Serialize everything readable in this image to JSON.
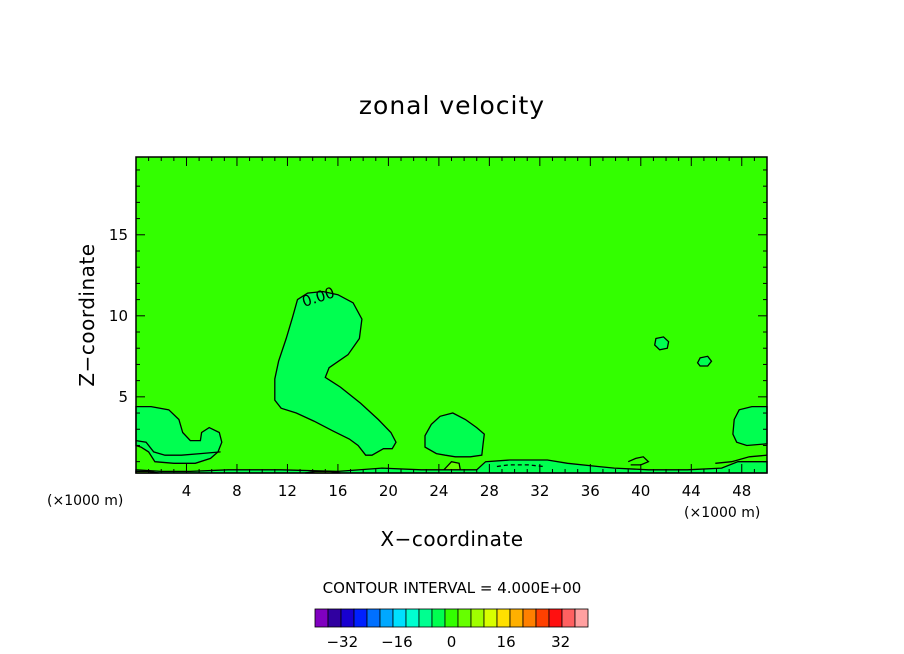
{
  "chart_data": {
    "type": "contour",
    "title": "zonal velocity",
    "xlabel": "X−coordinate",
    "ylabel": "Z−coordinate",
    "x_unit": "(×1000 m)",
    "x_unit_right": "(×1000 m)",
    "xlim": [
      0,
      50
    ],
    "ylim": [
      0.3,
      19.8
    ],
    "x_ticks": [
      4,
      8,
      12,
      16,
      20,
      24,
      28,
      32,
      36,
      40,
      44,
      48
    ],
    "y_ticks": [
      5,
      10,
      15
    ],
    "contour_interval_text": "CONTOUR INTERVAL = 4.000E+00",
    "contour_label": "0.00",
    "background_color": "#33ff00",
    "colorbar": {
      "colors": [
        "#8000c0",
        "#3000a0",
        "#1800d0",
        "#0020ff",
        "#0070ff",
        "#00a8ff",
        "#00e0ff",
        "#00ffd0",
        "#00ff90",
        "#00ff50",
        "#33ff00",
        "#66ff00",
        "#a0ff00",
        "#d8ff00",
        "#ffe000",
        "#ffb000",
        "#ff8000",
        "#ff4000",
        "#ff1010",
        "#ff6060",
        "#ffa0a0"
      ],
      "tick_labels": [
        "−32",
        "−16",
        "0",
        "16",
        "32"
      ],
      "tick_values": [
        -32,
        -16,
        0,
        16,
        32
      ],
      "vmin": -40,
      "vmax": 40
    },
    "regions": [
      {
        "name": "jet-negative",
        "level": -4,
        "color": "#00ff50",
        "points": [
          [
            12.8,
            11.0
          ],
          [
            13.6,
            11.4
          ],
          [
            14.8,
            11.5
          ],
          [
            16.0,
            11.3
          ],
          [
            17.2,
            10.8
          ],
          [
            17.9,
            9.8
          ],
          [
            17.7,
            8.6
          ],
          [
            16.8,
            7.6
          ],
          [
            15.3,
            6.8
          ],
          [
            15.0,
            6.2
          ],
          [
            16.2,
            5.6
          ],
          [
            17.8,
            4.6
          ],
          [
            19.2,
            3.6
          ],
          [
            20.2,
            2.8
          ],
          [
            20.6,
            2.2
          ],
          [
            20.3,
            1.8
          ],
          [
            19.6,
            1.8
          ],
          [
            18.7,
            1.4
          ],
          [
            18.2,
            1.4
          ],
          [
            17.6,
            2.0
          ],
          [
            16.9,
            2.4
          ],
          [
            15.6,
            2.9
          ],
          [
            14.1,
            3.5
          ],
          [
            12.7,
            4.0
          ],
          [
            11.5,
            4.3
          ],
          [
            11.0,
            4.8
          ],
          [
            11.0,
            6.1
          ],
          [
            11.3,
            7.2
          ],
          [
            11.9,
            8.6
          ],
          [
            12.4,
            9.9
          ]
        ]
      },
      {
        "name": "left-low-negative",
        "level": -4,
        "color": "#00ff50",
        "points": [
          [
            0,
            4.4
          ],
          [
            1.2,
            4.4
          ],
          [
            2.6,
            4.2
          ],
          [
            3.4,
            3.6
          ],
          [
            3.7,
            2.8
          ],
          [
            4.3,
            2.3
          ],
          [
            5.1,
            2.3
          ],
          [
            5.2,
            2.8
          ],
          [
            5.8,
            3.1
          ],
          [
            6.6,
            2.8
          ],
          [
            6.8,
            2.2
          ],
          [
            6.5,
            1.6
          ],
          [
            5.9,
            1.2
          ],
          [
            4.7,
            0.9
          ],
          [
            3.0,
            0.9
          ],
          [
            1.5,
            1.0
          ],
          [
            1.0,
            1.6
          ],
          [
            0.4,
            1.9
          ],
          [
            0,
            2.0
          ]
        ]
      },
      {
        "name": "mid-low-negative",
        "level": -4,
        "color": "#00ff50",
        "points": [
          [
            22.9,
            2.6
          ],
          [
            23.4,
            3.3
          ],
          [
            24.1,
            3.8
          ],
          [
            25.1,
            4.0
          ],
          [
            26.1,
            3.6
          ],
          [
            27.0,
            3.1
          ],
          [
            27.6,
            2.7
          ],
          [
            27.5,
            2.1
          ],
          [
            27.4,
            1.4
          ],
          [
            26.5,
            1.3
          ],
          [
            25.3,
            1.3
          ],
          [
            24.5,
            1.4
          ],
          [
            23.8,
            1.5
          ],
          [
            22.9,
            1.9
          ]
        ]
      },
      {
        "name": "right-low-negative",
        "level": -4,
        "color": "#00ff50",
        "points": [
          [
            50,
            4.4
          ],
          [
            48.8,
            4.4
          ],
          [
            47.8,
            4.2
          ],
          [
            47.4,
            3.6
          ],
          [
            47.3,
            2.7
          ],
          [
            47.6,
            2.2
          ],
          [
            48.4,
            2.0
          ],
          [
            50,
            2.1
          ]
        ]
      },
      {
        "name": "right-small-cell-1",
        "level": -4,
        "color": "#00ff50",
        "points": [
          [
            41.2,
            8.6
          ],
          [
            41.8,
            8.7
          ],
          [
            42.2,
            8.4
          ],
          [
            42.1,
            8.0
          ],
          [
            41.5,
            7.9
          ],
          [
            41.1,
            8.2
          ]
        ]
      },
      {
        "name": "right-small-cell-2",
        "level": -4,
        "color": "#00ff50",
        "points": [
          [
            44.7,
            7.4
          ],
          [
            45.3,
            7.5
          ],
          [
            45.6,
            7.2
          ],
          [
            45.3,
            6.9
          ],
          [
            44.7,
            6.9
          ],
          [
            44.5,
            7.1
          ]
        ]
      },
      {
        "name": "surface-layer-band",
        "level": -4,
        "color": "#00ff50",
        "points": [
          [
            0,
            0.3
          ],
          [
            50,
            0.3
          ],
          [
            50,
            1.0
          ],
          [
            47.7,
            1.0
          ],
          [
            46.4,
            0.6
          ],
          [
            43.7,
            0.5
          ],
          [
            40.6,
            0.5
          ],
          [
            37.9,
            0.6
          ],
          [
            36.6,
            0.7
          ],
          [
            34.2,
            0.9
          ],
          [
            32.6,
            1.1
          ],
          [
            29.6,
            1.1
          ],
          [
            27.7,
            1.0
          ],
          [
            27.0,
            0.5
          ],
          [
            22.6,
            0.5
          ],
          [
            19.5,
            0.6
          ],
          [
            16.0,
            0.4
          ],
          [
            11.5,
            0.5
          ],
          [
            7.3,
            0.5
          ],
          [
            4.3,
            0.4
          ],
          [
            2.0,
            0.4
          ],
          [
            0,
            0.5
          ]
        ]
      },
      {
        "name": "surface-patch-positive-1",
        "level": 4,
        "color": "#66ff00",
        "points": [
          [
            13.4,
            0.3
          ],
          [
            16.2,
            0.3
          ],
          [
            15.4,
            0.4
          ],
          [
            14.2,
            0.4
          ]
        ]
      },
      {
        "name": "surface-patch-positive-2",
        "level": 4,
        "color": "#66ff00",
        "points": [
          [
            24.4,
            0.5
          ],
          [
            25.0,
            1.0
          ],
          [
            25.6,
            0.9
          ],
          [
            25.7,
            0.5
          ]
        ]
      },
      {
        "name": "surface-patch-positive-3",
        "level": 4,
        "color": "#66ff00",
        "points": [
          [
            0,
            0.3
          ],
          [
            1.8,
            0.3
          ],
          [
            1.0,
            0.4
          ],
          [
            0,
            0.4
          ]
        ]
      }
    ],
    "contour_lines": [
      {
        "name": "contour-left-upper",
        "points": [
          [
            0,
            2.3
          ],
          [
            0.8,
            2.2
          ],
          [
            1.4,
            1.6
          ],
          [
            2.3,
            1.4
          ],
          [
            3.6,
            1.4
          ],
          [
            5.1,
            1.5
          ],
          [
            6.7,
            1.6
          ]
        ]
      },
      {
        "name": "contour-right-upper",
        "points": [
          [
            50,
            1.4
          ],
          [
            48.6,
            1.3
          ],
          [
            47.2,
            1.0
          ],
          [
            45.9,
            0.9
          ]
        ]
      },
      {
        "name": "contour-right-mid",
        "points": [
          [
            39.0,
            1.0
          ],
          [
            39.6,
            1.2
          ],
          [
            40.2,
            1.3
          ],
          [
            40.6,
            1.0
          ],
          [
            40.0,
            0.8
          ],
          [
            39.2,
            0.8
          ]
        ]
      },
      {
        "name": "contour-dashed-30",
        "dashed": true,
        "points": [
          [
            28.6,
            0.7
          ],
          [
            29.5,
            0.8
          ],
          [
            31.1,
            0.8
          ],
          [
            32.3,
            0.7
          ]
        ]
      }
    ]
  }
}
